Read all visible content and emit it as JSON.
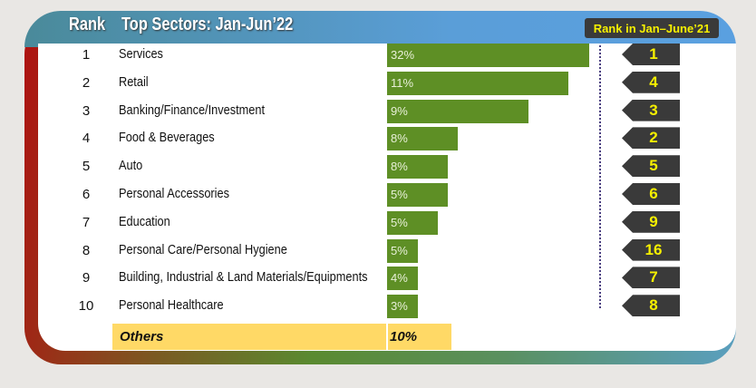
{
  "header": {
    "rank_label": "Rank",
    "title": "Top Sectors: Jan-Jun’22",
    "legend": "Rank in Jan–June’21"
  },
  "chart_data": {
    "type": "bar",
    "title": "Top Sectors: Jan-Jun’22",
    "categories": [
      "Services",
      "Retail",
      "Banking/Finance/Investment",
      "Food & Beverages",
      "Auto",
      "Personal Accessories",
      "Education",
      "Personal Care/Personal Hygiene",
      "Building, Industrial & Land Materials/Equipments",
      "Personal Healthcare"
    ],
    "ranks": [
      "1",
      "2",
      "3",
      "4",
      "5",
      "6",
      "7",
      "8",
      "9",
      "10"
    ],
    "values": [
      32,
      11,
      9,
      8,
      8,
      5,
      5,
      5,
      4,
      3
    ],
    "labels": [
      "32%",
      "11%",
      "9%",
      "8%",
      "8%",
      "5%",
      "5%",
      "5%",
      "4%",
      "3%"
    ],
    "prev_rank": [
      "1",
      "4",
      "3",
      "2",
      "5",
      "6",
      "9",
      "16",
      "7",
      "8"
    ],
    "others": {
      "label": "Others",
      "value": "10%"
    },
    "colors": {
      "bar": "#5e8f25",
      "badge": "#3a3a3a",
      "badge_text": "#f6f000",
      "others": "#ffd966"
    }
  }
}
